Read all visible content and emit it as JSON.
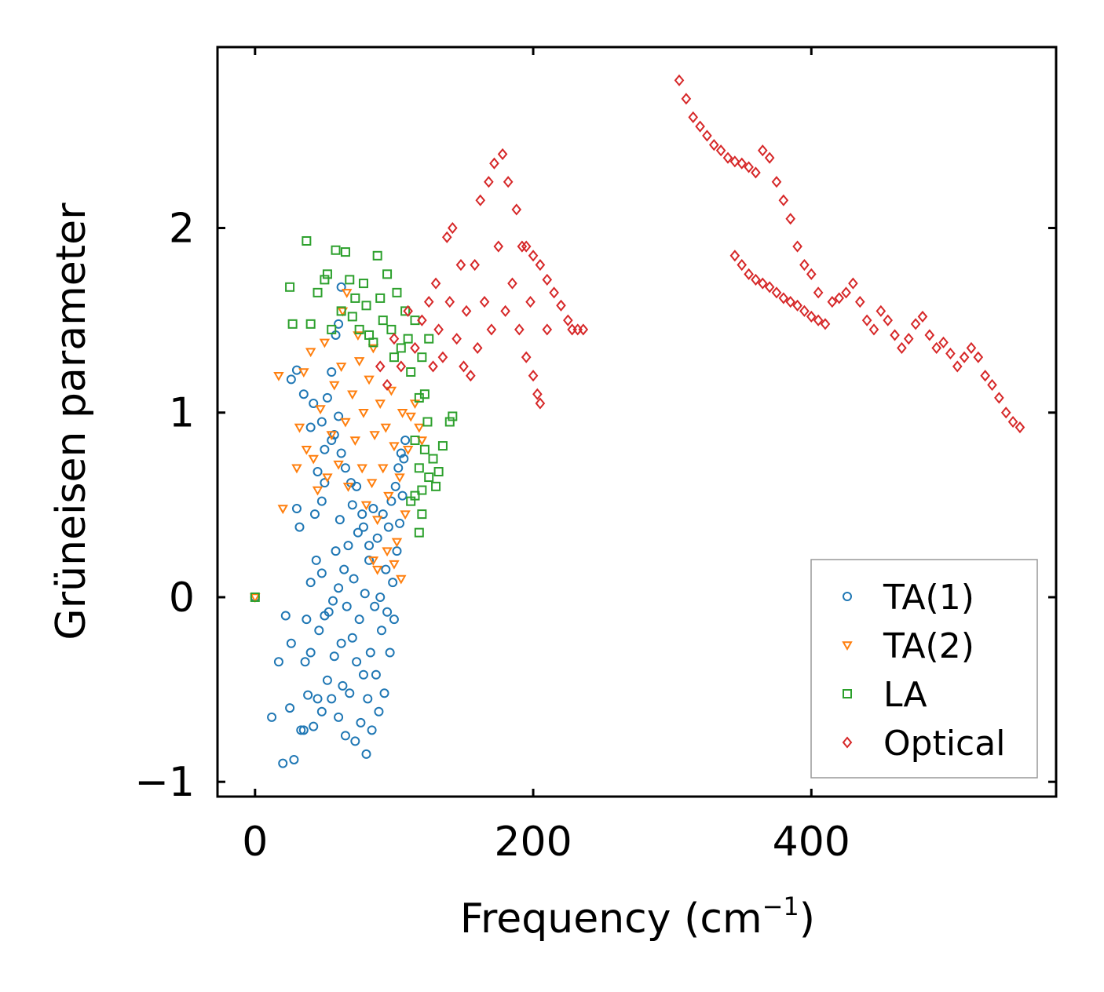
{
  "chart_data": {
    "type": "scatter",
    "xlabel": "Frequency (cm",
    "xlabel_sup": "−1",
    "xlabel_end": ")",
    "ylabel": "Grüneisen parameter",
    "xlim": [
      -27,
      576
    ],
    "ylim": [
      -1.08,
      2.98
    ],
    "xticks": [
      0,
      200,
      400
    ],
    "xtick_labels": [
      "0",
      "200",
      "400"
    ],
    "yticks": [
      -1,
      0,
      1,
      2
    ],
    "ytick_labels": [
      "−1",
      "0",
      "1",
      "2"
    ],
    "legend_position": "lower-right",
    "series": [
      {
        "name": "TA(1)",
        "marker": "circle",
        "color": "#1f77b4",
        "points": [
          [
            0,
            0
          ],
          [
            12,
            -0.65
          ],
          [
            17,
            -0.35
          ],
          [
            20,
            -0.9
          ],
          [
            22,
            -0.1
          ],
          [
            25,
            -0.6
          ],
          [
            26,
            -0.25
          ],
          [
            28,
            -0.88
          ],
          [
            30,
            0.48
          ],
          [
            32,
            0.38
          ],
          [
            33,
            -0.72
          ],
          [
            35,
            -0.72
          ],
          [
            36,
            -0.35
          ],
          [
            37,
            -0.12
          ],
          [
            38,
            -0.53
          ],
          [
            40,
            -0.3
          ],
          [
            40,
            0.08
          ],
          [
            42,
            -0.7
          ],
          [
            43,
            0.45
          ],
          [
            44,
            0.2
          ],
          [
            45,
            -0.55
          ],
          [
            46,
            -0.18
          ],
          [
            48,
            -0.62
          ],
          [
            48,
            0.13
          ],
          [
            50,
            -0.1
          ],
          [
            50,
            0.62
          ],
          [
            52,
            -0.45
          ],
          [
            53,
            -0.08
          ],
          [
            55,
            -0.55
          ],
          [
            56,
            -0.02
          ],
          [
            57,
            -0.32
          ],
          [
            58,
            0.25
          ],
          [
            60,
            -0.65
          ],
          [
            60,
            0.05
          ],
          [
            61,
            0.42
          ],
          [
            62,
            -0.25
          ],
          [
            63,
            -0.48
          ],
          [
            64,
            0.15
          ],
          [
            65,
            -0.75
          ],
          [
            66,
            -0.05
          ],
          [
            67,
            0.28
          ],
          [
            68,
            -0.52
          ],
          [
            69,
            0.62
          ],
          [
            70,
            -0.22
          ],
          [
            71,
            0.1
          ],
          [
            72,
            -0.78
          ],
          [
            73,
            -0.35
          ],
          [
            74,
            0.35
          ],
          [
            75,
            -0.12
          ],
          [
            76,
            -0.68
          ],
          [
            77,
            0.45
          ],
          [
            78,
            -0.42
          ],
          [
            79,
            0.02
          ],
          [
            80,
            -0.85
          ],
          [
            81,
            -0.55
          ],
          [
            82,
            0.2
          ],
          [
            83,
            -0.3
          ],
          [
            84,
            -0.72
          ],
          [
            85,
            0.48
          ],
          [
            86,
            -0.05
          ],
          [
            87,
            -0.42
          ],
          [
            88,
            0.32
          ],
          [
            89,
            -0.62
          ],
          [
            90,
            0.0
          ],
          [
            91,
            -0.18
          ],
          [
            92,
            0.45
          ],
          [
            93,
            -0.52
          ],
          [
            94,
            0.15
          ],
          [
            95,
            -0.08
          ],
          [
            96,
            0.38
          ],
          [
            97,
            -0.3
          ],
          [
            98,
            0.52
          ],
          [
            99,
            0.08
          ],
          [
            100,
            -0.12
          ],
          [
            101,
            0.6
          ],
          [
            102,
            0.25
          ],
          [
            103,
            0.7
          ],
          [
            104,
            0.4
          ],
          [
            105,
            0.78
          ],
          [
            106,
            0.55
          ],
          [
            107,
            0.75
          ],
          [
            108,
            0.85
          ],
          [
            45,
            0.68
          ],
          [
            48,
            0.95
          ],
          [
            52,
            1.08
          ],
          [
            55,
            1.22
          ],
          [
            58,
            1.42
          ],
          [
            60,
            1.48
          ],
          [
            26,
            1.18
          ],
          [
            30,
            1.23
          ],
          [
            35,
            1.1
          ],
          [
            40,
            0.92
          ],
          [
            42,
            1.05
          ],
          [
            50,
            0.8
          ],
          [
            57,
            0.88
          ],
          [
            62,
            0.78
          ],
          [
            65,
            0.7
          ],
          [
            70,
            0.5
          ],
          [
            73,
            0.6
          ],
          [
            78,
            0.38
          ],
          [
            82,
            0.28
          ],
          [
            62,
            1.68
          ],
          [
            48,
            0.52
          ],
          [
            55,
            0.85
          ],
          [
            60,
            0.98
          ]
        ]
      },
      {
        "name": "TA(2)",
        "marker": "triangle",
        "color": "#ff7f0e",
        "points": [
          [
            0,
            0
          ],
          [
            17,
            1.2
          ],
          [
            20,
            0.48
          ],
          [
            30,
            0.7
          ],
          [
            32,
            0.92
          ],
          [
            35,
            1.22
          ],
          [
            37,
            0.8
          ],
          [
            40,
            1.33
          ],
          [
            42,
            0.75
          ],
          [
            45,
            0.58
          ],
          [
            47,
            1.02
          ],
          [
            50,
            1.38
          ],
          [
            52,
            0.65
          ],
          [
            55,
            0.88
          ],
          [
            57,
            1.15
          ],
          [
            60,
            0.72
          ],
          [
            62,
            1.25
          ],
          [
            63,
            1.55
          ],
          [
            65,
            0.95
          ],
          [
            66,
            1.65
          ],
          [
            67,
            0.6
          ],
          [
            70,
            1.1
          ],
          [
            72,
            0.85
          ],
          [
            74,
            1.42
          ],
          [
            75,
            1.28
          ],
          [
            77,
            0.7
          ],
          [
            78,
            1.0
          ],
          [
            80,
            0.5
          ],
          [
            82,
            1.18
          ],
          [
            84,
            0.62
          ],
          [
            85,
            1.35
          ],
          [
            86,
            0.88
          ],
          [
            88,
            0.42
          ],
          [
            90,
            1.05
          ],
          [
            92,
            0.7
          ],
          [
            94,
            0.92
          ],
          [
            96,
            0.55
          ],
          [
            98,
            1.12
          ],
          [
            100,
            0.82
          ],
          [
            102,
            0.3
          ],
          [
            104,
            0.65
          ],
          [
            106,
            1.0
          ],
          [
            108,
            0.45
          ],
          [
            110,
            0.8
          ],
          [
            112,
            0.98
          ],
          [
            115,
            1.05
          ],
          [
            118,
            0.92
          ],
          [
            120,
            0.85
          ],
          [
            85,
            0.2
          ],
          [
            88,
            0.15
          ],
          [
            95,
            0.25
          ],
          [
            100,
            0.18
          ],
          [
            105,
            0.1
          ]
        ]
      },
      {
        "name": "LA",
        "marker": "square",
        "color": "#2ca02c",
        "points": [
          [
            0,
            0
          ],
          [
            25,
            1.68
          ],
          [
            27,
            1.48
          ],
          [
            37,
            1.93
          ],
          [
            40,
            1.48
          ],
          [
            45,
            1.65
          ],
          [
            50,
            1.72
          ],
          [
            52,
            1.75
          ],
          [
            55,
            1.45
          ],
          [
            58,
            1.88
          ],
          [
            62,
            1.55
          ],
          [
            65,
            1.87
          ],
          [
            68,
            1.72
          ],
          [
            70,
            1.52
          ],
          [
            72,
            1.62
          ],
          [
            75,
            1.45
          ],
          [
            78,
            1.7
          ],
          [
            80,
            1.58
          ],
          [
            82,
            1.42
          ],
          [
            85,
            1.38
          ],
          [
            88,
            1.85
          ],
          [
            90,
            1.62
          ],
          [
            92,
            1.5
          ],
          [
            95,
            1.75
          ],
          [
            98,
            1.45
          ],
          [
            100,
            1.3
          ],
          [
            102,
            1.65
          ],
          [
            105,
            1.35
          ],
          [
            108,
            1.55
          ],
          [
            110,
            1.4
          ],
          [
            112,
            1.22
          ],
          [
            115,
            1.5
          ],
          [
            118,
            1.08
          ],
          [
            120,
            1.3
          ],
          [
            122,
            1.1
          ],
          [
            124,
            0.95
          ],
          [
            125,
            1.4
          ],
          [
            115,
            0.85
          ],
          [
            118,
            0.7
          ],
          [
            120,
            0.58
          ],
          [
            122,
            0.8
          ],
          [
            125,
            0.65
          ],
          [
            128,
            0.75
          ],
          [
            130,
            0.6
          ],
          [
            132,
            0.68
          ],
          [
            120,
            0.45
          ],
          [
            118,
            0.35
          ],
          [
            115,
            0.55
          ],
          [
            112,
            0.52
          ],
          [
            135,
            0.82
          ],
          [
            140,
            0.95
          ],
          [
            142,
            0.98
          ]
        ]
      },
      {
        "name": "Optical",
        "marker": "diamond",
        "color": "#d62728",
        "points": [
          [
            90,
            1.25
          ],
          [
            95,
            1.15
          ],
          [
            100,
            1.4
          ],
          [
            105,
            1.25
          ],
          [
            110,
            1.55
          ],
          [
            115,
            1.35
          ],
          [
            120,
            1.5
          ],
          [
            125,
            1.6
          ],
          [
            128,
            1.25
          ],
          [
            130,
            1.7
          ],
          [
            132,
            1.45
          ],
          [
            135,
            1.3
          ],
          [
            138,
            1.95
          ],
          [
            140,
            1.6
          ],
          [
            142,
            2.0
          ],
          [
            145,
            1.4
          ],
          [
            148,
            1.8
          ],
          [
            150,
            1.25
          ],
          [
            152,
            1.55
          ],
          [
            155,
            1.2
          ],
          [
            158,
            1.8
          ],
          [
            160,
            1.35
          ],
          [
            162,
            2.15
          ],
          [
            165,
            1.6
          ],
          [
            168,
            2.25
          ],
          [
            170,
            1.45
          ],
          [
            172,
            2.35
          ],
          [
            175,
            1.9
          ],
          [
            178,
            2.4
          ],
          [
            180,
            1.55
          ],
          [
            182,
            2.25
          ],
          [
            185,
            1.7
          ],
          [
            188,
            2.1
          ],
          [
            190,
            1.45
          ],
          [
            192,
            1.9
          ],
          [
            195,
            1.3
          ],
          [
            198,
            1.6
          ],
          [
            200,
            1.2
          ],
          [
            203,
            1.1
          ],
          [
            205,
            1.05
          ],
          [
            195,
            1.9
          ],
          [
            200,
            1.85
          ],
          [
            205,
            1.8
          ],
          [
            210,
            1.72
          ],
          [
            215,
            1.65
          ],
          [
            220,
            1.58
          ],
          [
            225,
            1.5
          ],
          [
            228,
            1.45
          ],
          [
            232,
            1.45
          ],
          [
            236,
            1.45
          ],
          [
            210,
            1.45
          ],
          [
            305,
            2.8
          ],
          [
            310,
            2.7
          ],
          [
            315,
            2.6
          ],
          [
            320,
            2.55
          ],
          [
            325,
            2.5
          ],
          [
            330,
            2.45
          ],
          [
            335,
            2.42
          ],
          [
            340,
            2.38
          ],
          [
            345,
            2.36
          ],
          [
            350,
            2.35
          ],
          [
            355,
            2.33
          ],
          [
            360,
            2.3
          ],
          [
            365,
            2.42
          ],
          [
            370,
            2.38
          ],
          [
            375,
            2.25
          ],
          [
            380,
            2.15
          ],
          [
            385,
            2.05
          ],
          [
            390,
            1.9
          ],
          [
            395,
            1.8
          ],
          [
            400,
            1.75
          ],
          [
            405,
            1.65
          ],
          [
            345,
            1.85
          ],
          [
            350,
            1.8
          ],
          [
            355,
            1.75
          ],
          [
            360,
            1.72
          ],
          [
            365,
            1.7
          ],
          [
            370,
            1.68
          ],
          [
            375,
            1.65
          ],
          [
            380,
            1.62
          ],
          [
            385,
            1.6
          ],
          [
            390,
            1.58
          ],
          [
            395,
            1.55
          ],
          [
            400,
            1.52
          ],
          [
            405,
            1.5
          ],
          [
            410,
            1.48
          ],
          [
            415,
            1.6
          ],
          [
            420,
            1.62
          ],
          [
            425,
            1.65
          ],
          [
            430,
            1.7
          ],
          [
            435,
            1.6
          ],
          [
            440,
            1.5
          ],
          [
            445,
            1.45
          ],
          [
            450,
            1.55
          ],
          [
            455,
            1.5
          ],
          [
            460,
            1.42
          ],
          [
            465,
            1.35
          ],
          [
            470,
            1.4
          ],
          [
            475,
            1.48
          ],
          [
            480,
            1.52
          ],
          [
            485,
            1.42
          ],
          [
            490,
            1.35
          ],
          [
            495,
            1.38
          ],
          [
            500,
            1.32
          ],
          [
            505,
            1.25
          ],
          [
            510,
            1.3
          ],
          [
            515,
            1.35
          ],
          [
            520,
            1.3
          ],
          [
            525,
            1.2
          ],
          [
            530,
            1.15
          ],
          [
            535,
            1.08
          ],
          [
            540,
            1.0
          ],
          [
            545,
            0.95
          ],
          [
            550,
            0.92
          ]
        ]
      }
    ]
  }
}
